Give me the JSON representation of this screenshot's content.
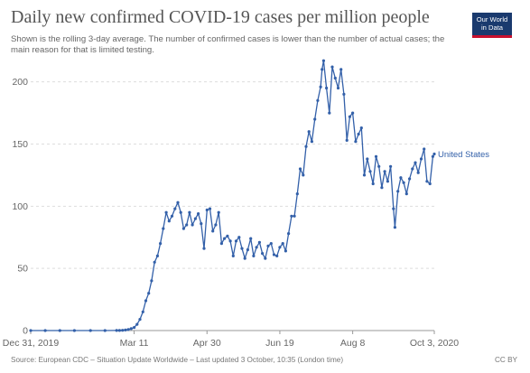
{
  "header": {
    "title": "Daily new confirmed COVID-19 cases per million people",
    "subtitle": "Shown is the rolling 3-day average. The number of confirmed cases is lower than the number of actual cases; the main reason for that is limited testing.",
    "logo_line1": "Our World",
    "logo_line2": "in Data"
  },
  "footer": {
    "source": "Source: European CDC – Situation Update Worldwide – Last updated 3 October, 10:35 (London time)",
    "license": "CC BY"
  },
  "colors": {
    "series": "#3360a9",
    "grid": "#dddddd",
    "axis": "#999999",
    "text": "#666666"
  },
  "chart_data": {
    "type": "line",
    "title": "Daily new confirmed COVID-19 cases per million people",
    "xlabel": "",
    "ylabel": "",
    "ylim": [
      0,
      215
    ],
    "yticks": [
      0,
      50,
      100,
      150,
      200
    ],
    "xticks": [
      {
        "date": "2019-12-31",
        "label": "Dec 31, 2019"
      },
      {
        "date": "2020-03-11",
        "label": "Mar 11"
      },
      {
        "date": "2020-04-30",
        "label": "Apr 30"
      },
      {
        "date": "2020-06-19",
        "label": "Jun 19"
      },
      {
        "date": "2020-08-08",
        "label": "Aug 8"
      },
      {
        "date": "2020-10-03",
        "label": "Oct 3, 2020"
      }
    ],
    "grid": true,
    "legend": "end-of-line label",
    "series": [
      {
        "name": "United States",
        "points": [
          [
            "2019-12-31",
            0
          ],
          [
            "2020-01-10",
            0
          ],
          [
            "2020-01-20",
            0
          ],
          [
            "2020-01-30",
            0
          ],
          [
            "2020-02-10",
            0
          ],
          [
            "2020-02-20",
            0
          ],
          [
            "2020-02-28",
            0.1
          ],
          [
            "2020-03-01",
            0.1
          ],
          [
            "2020-03-03",
            0.2
          ],
          [
            "2020-03-05",
            0.4
          ],
          [
            "2020-03-07",
            0.8
          ],
          [
            "2020-03-09",
            1.5
          ],
          [
            "2020-03-11",
            2.5
          ],
          [
            "2020-03-13",
            5
          ],
          [
            "2020-03-15",
            9
          ],
          [
            "2020-03-17",
            15
          ],
          [
            "2020-03-19",
            24
          ],
          [
            "2020-03-21",
            30
          ],
          [
            "2020-03-23",
            40
          ],
          [
            "2020-03-25",
            55
          ],
          [
            "2020-03-27",
            60
          ],
          [
            "2020-03-29",
            70
          ],
          [
            "2020-03-31",
            82
          ],
          [
            "2020-04-02",
            95
          ],
          [
            "2020-04-04",
            88
          ],
          [
            "2020-04-06",
            92
          ],
          [
            "2020-04-08",
            98
          ],
          [
            "2020-04-10",
            103
          ],
          [
            "2020-04-12",
            95
          ],
          [
            "2020-04-14",
            82
          ],
          [
            "2020-04-16",
            85
          ],
          [
            "2020-04-18",
            95
          ],
          [
            "2020-04-20",
            85
          ],
          [
            "2020-04-22",
            90
          ],
          [
            "2020-04-24",
            94
          ],
          [
            "2020-04-26",
            86
          ],
          [
            "2020-04-28",
            66
          ],
          [
            "2020-04-30",
            97
          ],
          [
            "2020-05-02",
            98
          ],
          [
            "2020-05-04",
            80
          ],
          [
            "2020-05-06",
            85
          ],
          [
            "2020-05-08",
            95
          ],
          [
            "2020-05-10",
            70
          ],
          [
            "2020-05-12",
            74
          ],
          [
            "2020-05-14",
            76
          ],
          [
            "2020-05-16",
            72
          ],
          [
            "2020-05-18",
            60
          ],
          [
            "2020-05-20",
            72
          ],
          [
            "2020-05-22",
            75
          ],
          [
            "2020-05-24",
            66
          ],
          [
            "2020-05-26",
            58
          ],
          [
            "2020-05-28",
            65
          ],
          [
            "2020-05-30",
            74
          ],
          [
            "2020-06-01",
            60
          ],
          [
            "2020-06-03",
            67
          ],
          [
            "2020-06-05",
            71
          ],
          [
            "2020-06-07",
            62
          ],
          [
            "2020-06-09",
            58
          ],
          [
            "2020-06-11",
            68
          ],
          [
            "2020-06-13",
            70
          ],
          [
            "2020-06-15",
            61
          ],
          [
            "2020-06-17",
            60
          ],
          [
            "2020-06-19",
            67
          ],
          [
            "2020-06-21",
            70
          ],
          [
            "2020-06-23",
            64
          ],
          [
            "2020-06-25",
            78
          ],
          [
            "2020-06-27",
            92
          ],
          [
            "2020-06-29",
            92
          ],
          [
            "2020-07-01",
            110
          ],
          [
            "2020-07-03",
            130
          ],
          [
            "2020-07-05",
            125
          ],
          [
            "2020-07-07",
            148
          ],
          [
            "2020-07-09",
            160
          ],
          [
            "2020-07-11",
            152
          ],
          [
            "2020-07-13",
            170
          ],
          [
            "2020-07-15",
            185
          ],
          [
            "2020-07-17",
            196
          ],
          [
            "2020-07-18",
            210
          ],
          [
            "2020-07-19",
            217
          ],
          [
            "2020-07-21",
            195
          ],
          [
            "2020-07-23",
            175
          ],
          [
            "2020-07-25",
            212
          ],
          [
            "2020-07-27",
            203
          ],
          [
            "2020-07-29",
            195
          ],
          [
            "2020-07-31",
            210
          ],
          [
            "2020-08-02",
            190
          ],
          [
            "2020-08-04",
            153
          ],
          [
            "2020-08-06",
            172
          ],
          [
            "2020-08-08",
            175
          ],
          [
            "2020-08-10",
            152
          ],
          [
            "2020-08-12",
            158
          ],
          [
            "2020-08-14",
            163
          ],
          [
            "2020-08-16",
            125
          ],
          [
            "2020-08-18",
            138
          ],
          [
            "2020-08-20",
            128
          ],
          [
            "2020-08-22",
            118
          ],
          [
            "2020-08-24",
            140
          ],
          [
            "2020-08-26",
            132
          ],
          [
            "2020-08-28",
            115
          ],
          [
            "2020-08-30",
            128
          ],
          [
            "2020-09-01",
            120
          ],
          [
            "2020-09-03",
            132
          ],
          [
            "2020-09-05",
            98
          ],
          [
            "2020-09-06",
            83
          ],
          [
            "2020-09-08",
            112
          ],
          [
            "2020-09-10",
            123
          ],
          [
            "2020-09-12",
            119
          ],
          [
            "2020-09-14",
            110
          ],
          [
            "2020-09-16",
            122
          ],
          [
            "2020-09-18",
            130
          ],
          [
            "2020-09-20",
            135
          ],
          [
            "2020-09-22",
            127
          ],
          [
            "2020-09-24",
            138
          ],
          [
            "2020-09-26",
            146
          ],
          [
            "2020-09-28",
            120
          ],
          [
            "2020-09-30",
            118
          ],
          [
            "2020-10-02",
            140
          ],
          [
            "2020-10-03",
            142
          ]
        ]
      }
    ]
  }
}
